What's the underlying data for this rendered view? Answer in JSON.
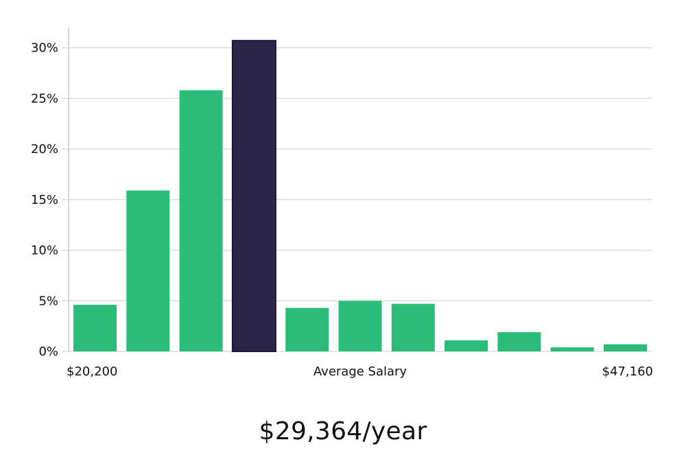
{
  "chart_data": {
    "type": "bar",
    "title": "",
    "xlabel": "Average Salary",
    "x_min_label": "$20,200",
    "x_max_label": "$47,160",
    "ylabel": "",
    "ylim": [
      0,
      32
    ],
    "yticks": [
      0,
      5,
      10,
      15,
      20,
      25,
      30
    ],
    "ytick_labels": [
      "0%",
      "5%",
      "10%",
      "15%",
      "20%",
      "25%",
      "30%"
    ],
    "values": [
      4.6,
      15.9,
      25.8,
      30.7,
      4.3,
      5.0,
      4.7,
      1.1,
      1.9,
      0.4,
      0.7
    ],
    "highlight_index": 3,
    "grid": true,
    "colors": {
      "bar": "#2bbd77",
      "highlight": "#2a2647",
      "grid": "#dddddd",
      "axis": "#cccccc"
    }
  },
  "summary": "$29,364/year"
}
